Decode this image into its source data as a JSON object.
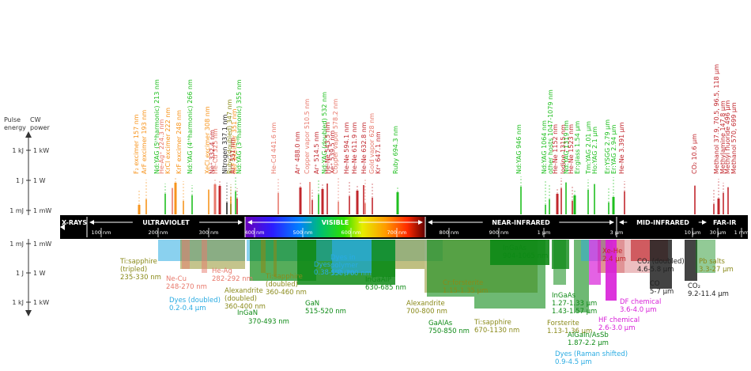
{
  "colors": {
    "gas": "#c1272d",
    "metal_vapor": "#e8796c",
    "solid_state": "#1fbf1f",
    "excimer": "#f7941d",
    "chemical": "#d81fd8",
    "dye": "#29abe2",
    "semiconductor": "#0e8a16",
    "tisapph": "#8a8a1a",
    "dark": "#222222"
  },
  "left_axis": {
    "pulse_label": [
      "Pulse",
      "energy"
    ],
    "cw_label": [
      "CW",
      "power"
    ],
    "upper": [
      {
        "pulse": "1 kJ",
        "cw": "1 kW"
      },
      {
        "pulse": "1 J",
        "cw": "1 W"
      },
      {
        "pulse": "1 mJ",
        "cw": "1 mW"
      }
    ],
    "lower": [
      {
        "pulse": "1 mJ",
        "cw": "1 mW"
      },
      {
        "pulse": "1 J",
        "cw": "1 W"
      },
      {
        "pulse": "1 kJ",
        "cw": "1 kW"
      }
    ]
  },
  "band": {
    "regions": [
      {
        "label": "X-RAYS"
      },
      {
        "label": "ULTRAVIOLET"
      },
      {
        "label": "VISIBLE"
      },
      {
        "label": "NEAR-INFRARED"
      },
      {
        "label": "MID-INFRARED"
      },
      {
        "label": "FAR-IR"
      }
    ],
    "ticks": [
      "100 nm",
      "200 nm",
      "300 nm",
      "400 nm",
      "500 nm",
      "600 nm",
      "700 nm",
      "800 nm",
      "900 nm",
      "1 µm",
      "3 µm",
      "10 µm",
      "30 µm",
      "1 mm"
    ]
  },
  "top_lasers": [
    {
      "label": "F₂ excimer  157 nm",
      "cat": "excimer"
    },
    {
      "label": "ArF excimer  193 nm",
      "cat": "excimer"
    },
    {
      "label": "Nd:YAG (5ᵗʰharmonic)  213 nm",
      "cat": "solid_state"
    },
    {
      "label": "He-Ag⁺  224.3 nm",
      "cat": "metal_vapor"
    },
    {
      "label": "KrCl excimer  222 nm",
      "cat": "excimer"
    },
    {
      "label": "KrF excimer  248 nm",
      "cat": "excimer"
    },
    {
      "label": "Nd:YAG (4ᵗʰharmonic)  266 nm",
      "cat": "solid_state"
    },
    {
      "label": "XeCl excimer  308 nm",
      "cat": "excimer"
    },
    {
      "label": "He-Cd  325 nm",
      "cat": "metal_vapor"
    },
    {
      "label": "Nitrogen  337.1 nm",
      "cat": "dark"
    },
    {
      "label": "XeF excimer  351 nm",
      "cat": "excimer"
    },
    {
      "label": "Nd:YAG (3ʳᵈharmonic)  355 nm",
      "cat": "solid_state"
    },
    {
      "label": "Ne⁺  332.4 nm",
      "cat": "gas"
    },
    {
      "label": "Ruby (doubled)  347 nm",
      "cat": "tisapph"
    },
    {
      "label": "Ar⁺  351 nm",
      "cat": "gas"
    },
    {
      "label": "He-Cd  441.6 nm",
      "cat": "metal_vapor"
    },
    {
      "label": "Ar⁺  488.0 nm",
      "cat": "gas"
    },
    {
      "label": "Copper vapor  510.5 nm",
      "cat": "metal_vapor"
    },
    {
      "label": "Ar⁺  514.5 nm",
      "cat": "gas"
    },
    {
      "label": "Nd:YAG (doubled)  532 nm",
      "cat": "solid_state"
    },
    {
      "label": "He-Ne  543.5 nm",
      "cat": "gas"
    },
    {
      "label": "Xe⁺  539.5 nm",
      "cat": "gas"
    },
    {
      "label": "Copper vapor  578.2 nm",
      "cat": "metal_vapor"
    },
    {
      "label": "He-Ne  594.1 nm",
      "cat": "gas"
    },
    {
      "label": "He-Ne  611.9 nm",
      "cat": "gas"
    },
    {
      "label": "He-Ne  632.8 nm",
      "cat": "gas"
    },
    {
      "label": "Gold vapor  628 nm",
      "cat": "metal_vapor"
    },
    {
      "label": "Kr⁺  647.1 nm",
      "cat": "gas"
    },
    {
      "label": "Ruby  694.3 nm",
      "cat": "solid_state"
    },
    {
      "label": "Nd:YAG  946 nm",
      "cat": "solid_state"
    },
    {
      "label": "Nd:YAG  1064 nm",
      "cat": "solid_state"
    },
    {
      "label": "other hosts 1047-1079 nm",
      "cat": "solid_state"
    },
    {
      "label": "He-Ne  1152 nm",
      "cat": "gas"
    },
    {
      "label": "Iodine  1315 nm",
      "cat": "gas"
    },
    {
      "label": "Nd:YAG  1319 nm",
      "cat": "solid_state"
    },
    {
      "label": "He-Ne  1523 nm",
      "cat": "gas"
    },
    {
      "label": "Er:glass  1.54 µm",
      "cat": "solid_state"
    },
    {
      "label": "Tm:YAG  2.01 µm",
      "cat": "solid_state"
    },
    {
      "label": "Ho:YAG  2.1 µm",
      "cat": "solid_state"
    },
    {
      "label": "Er:YSGG  2.79 µm",
      "cat": "solid_state"
    },
    {
      "label": "Er:YAG  2.94 µm",
      "cat": "solid_state"
    },
    {
      "label": "He-Ne  3.391 µm",
      "cat": "gas"
    },
    {
      "label": "CO₂  10.6 µm",
      "cat": "gas"
    },
    {
      "label": "Methanol  37.9, 70.5, 96.5, 118 µm",
      "cat": "gas"
    },
    {
      "label": "Methylamine  147.8 µm",
      "cat": "gas"
    },
    {
      "label": "Methyl fluoride  496 µm",
      "cat": "gas"
    },
    {
      "label": "Methanol  570, 699 µm",
      "cat": "gas"
    }
  ],
  "bottom_labels": [
    {
      "lines": [
        "Ti:sapphire",
        "(tripled)",
        "235-330 nm"
      ],
      "cat": "tisapph"
    },
    {
      "lines": [
        "He-Ag",
        "282-292 nm"
      ],
      "cat": "metal_vapor"
    },
    {
      "lines": [
        "Ne-Cu",
        "248-270 nm"
      ],
      "cat": "metal_vapor"
    },
    {
      "lines": [
        "Dyes (doubled)",
        "0.2-0.4 µm"
      ],
      "cat": "dye"
    },
    {
      "lines": [
        "InGaN"
      ],
      "cat": "semiconductor"
    },
    {
      "lines": [
        "Alexandrite",
        "(doubled)",
        "360-400 nm"
      ],
      "cat": "tisapph"
    },
    {
      "lines": [
        "370-493 nm"
      ],
      "cat": "semiconductor"
    },
    {
      "lines": [
        "Ti:sapphire",
        "(doubled)",
        "360-460 nm"
      ],
      "cat": "tisapph"
    },
    {
      "lines": [
        "Dyes",
        "0.38-1.0 µm"
      ],
      "cat": "dye"
    },
    {
      "lines": [
        "Dyes in",
        "polymer",
        "550-700 nm"
      ],
      "cat": "dye"
    },
    {
      "lines": [
        "GaN",
        "515-520 nm"
      ],
      "cat": "semiconductor"
    },
    {
      "lines": [
        "InGaAlP",
        "630-685 nm"
      ],
      "cat": "semiconductor"
    },
    {
      "lines": [
        "Alexandrite",
        "700-800 nm"
      ],
      "cat": "tisapph"
    },
    {
      "lines": [
        "Cr:forsterite",
        "1.15-1.35 µm"
      ],
      "cat": "tisapph"
    },
    {
      "lines": [
        "GaAlAs",
        "750-850 nm"
      ],
      "cat": "semiconductor"
    },
    {
      "lines": [
        "Ti:sapphire",
        "670-1130 nm"
      ],
      "cat": "tisapph"
    },
    {
      "lines": [
        "InGaAs",
        "904-1065 nm"
      ],
      "cat": "semiconductor"
    },
    {
      "lines": [
        "InGaAs",
        "1.27-1.33 µm",
        "1.43-1.57 µm"
      ],
      "cat": "semiconductor"
    },
    {
      "lines": [
        "Forsterite",
        "1.13-1.36 µm"
      ],
      "cat": "tisapph"
    },
    {
      "lines": [
        "AlGaIn/AsSb",
        "1.87-2.2 µm"
      ],
      "cat": "semiconductor"
    },
    {
      "lines": [
        "Dyes (Raman shifted)",
        "0.9-4.5 µm"
      ],
      "cat": "dye"
    },
    {
      "lines": [
        "Xe-He",
        "2.4 µm"
      ],
      "cat": "gas"
    },
    {
      "lines": [
        "DF chemical",
        "3.6-4.0 µm"
      ],
      "cat": "chemical"
    },
    {
      "lines": [
        "HF chemical",
        "2.6-3.0 µm"
      ],
      "cat": "chemical"
    },
    {
      "lines": [
        "CO₂ (doubled)",
        "4.6-5.8 µm"
      ],
      "cat": "dark"
    },
    {
      "lines": [
        "CO",
        "5-7 µm"
      ],
      "cat": "dark"
    },
    {
      "lines": [
        "CO₂",
        "9.2-11.4 µm"
      ],
      "cat": "dark"
    },
    {
      "lines": [
        "Pb salts",
        "3.3-27 µm"
      ],
      "cat": "tisapph"
    }
  ]
}
